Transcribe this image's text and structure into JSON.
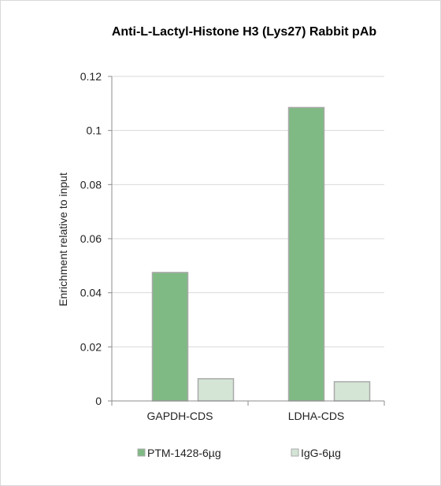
{
  "chart_data": {
    "type": "bar",
    "title": "Anti-L-Lactyl-Histone H3 (Lys27) Rabbit pAb",
    "xlabel": "",
    "ylabel": "Enrichment relative to input",
    "categories": [
      "GAPDH-CDS",
      "LDHA-CDS"
    ],
    "series": [
      {
        "name": "PTM-1428-6µg",
        "values": [
          0.0475,
          0.1085
        ],
        "color": "#7fba84",
        "stroke": "#a9a9a9"
      },
      {
        "name": "IgG-6µg",
        "values": [
          0.0082,
          0.0071
        ],
        "color": "#d4e5d6",
        "stroke": "#a9a9a9"
      }
    ],
    "ylim": [
      0,
      0.12
    ],
    "yticks": [
      0,
      0.02,
      0.04,
      0.06,
      0.08,
      0.1,
      0.12
    ],
    "ytick_labels": [
      "0",
      "0.02",
      "0.04",
      "0.06",
      "0.08",
      "0.1",
      "0.12"
    ],
    "grid": true,
    "legend_position": "bottom"
  }
}
